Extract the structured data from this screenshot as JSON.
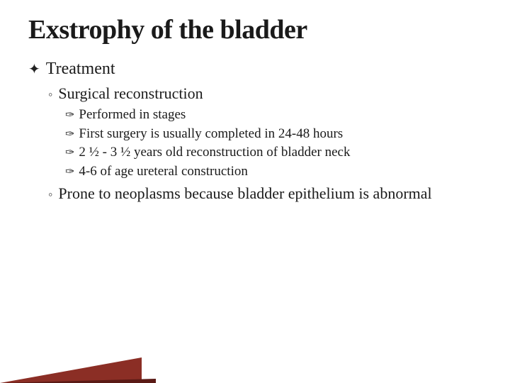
{
  "background_color": "#ffffff",
  "accent_gradient_color": "#8b2e25",
  "accent_shadow_color": "#5a1a15",
  "title": {
    "text": "Exstrophy of the bladder",
    "fontsize": 38,
    "color": "#1a1a1a",
    "weight": "bold"
  },
  "lvl1_bullet_glyph": "✦",
  "lvl2_bullet_glyph": "◦",
  "lvl3_bullet_glyph": "✑",
  "content": {
    "heading": "Treatment",
    "sub1": {
      "text": "Surgical reconstruction",
      "items": [
        "Performed in stages",
        "First surgery is usually completed in 24-48 hours",
        "2 ½ - 3 ½ years old reconstruction of bladder neck",
        "4-6 of age ureteral construction"
      ]
    },
    "sub2": {
      "text": "Prone to neoplasms because bladder epithelium is abnormal"
    }
  },
  "typography": {
    "family": "Georgia, serif",
    "lvl1_fontsize": 24,
    "lvl2_fontsize": 22,
    "lvl3_fontsize": 19
  }
}
